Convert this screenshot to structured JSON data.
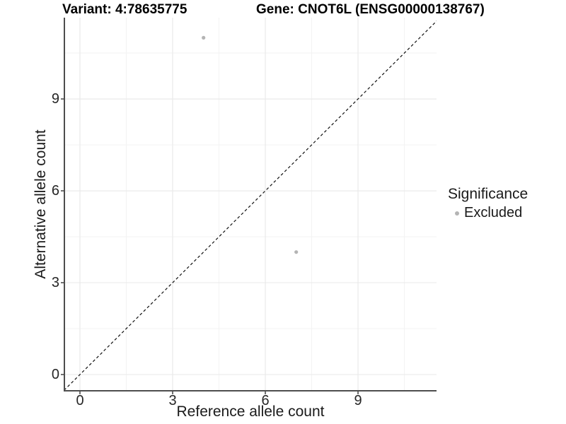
{
  "chart_data": {
    "type": "scatter",
    "title_left": "Variant: 4:78635775",
    "title_right": "Gene: CNOT6L (ENSG00000138767)",
    "xlabel": "Reference allele count",
    "ylabel": "Alternative allele count",
    "xticks": [
      0,
      3,
      6,
      9
    ],
    "yticks": [
      0,
      3,
      6,
      9
    ],
    "xlim": [
      -0.5,
      11.55
    ],
    "ylim": [
      -0.55,
      11.7
    ],
    "minor_grid_step": 1.5,
    "grid": "major+minor on white background",
    "reference_line": {
      "type": "identity y=x",
      "style": "dashed",
      "color": "#111111"
    },
    "series": [
      {
        "name": "Excluded",
        "color": "#b4b4b4",
        "points": [
          {
            "x": 4,
            "y": 11
          },
          {
            "x": 7,
            "y": 4
          }
        ]
      }
    ],
    "legend": {
      "title": "Significance",
      "position": "right",
      "items": [
        {
          "label": "Excluded",
          "color": "#b4b4b4"
        }
      ]
    }
  },
  "colors": {
    "background": "#ffffff",
    "axis_line": "#4d4d4d",
    "grid_major": "#e8e8e8",
    "grid_minor": "#f3f3f3",
    "tick_text": "#262626",
    "point": "#b4b4b4"
  }
}
